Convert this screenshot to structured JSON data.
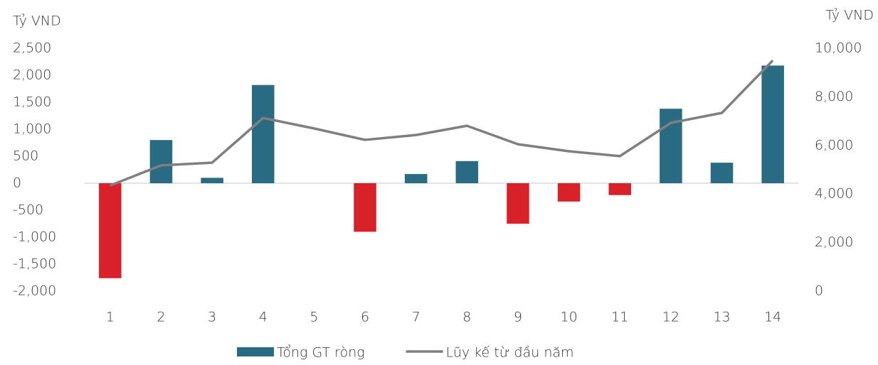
{
  "chart_data": {
    "type": "bar",
    "y_label": "Tỷ VND",
    "y2_label": "Tỷ VND",
    "categories": [
      "1",
      "2",
      "3",
      "4",
      "5",
      "6",
      "7",
      "8",
      "9",
      "10",
      "11",
      "12",
      "13",
      "14"
    ],
    "series": [
      {
        "name": "Tổng GT ròng",
        "type": "bar",
        "color": "#296b82",
        "negative_color": "#d92129",
        "values": [
          -1760,
          800,
          100,
          1820,
          0,
          -900,
          170,
          410,
          -750,
          -340,
          -220,
          1380,
          380,
          2180
        ]
      },
      {
        "name": "Lũy kế từ đầu năm",
        "type": "line",
        "axis": "y2",
        "color": "#7f7f7f",
        "values": [
          4350,
          5180,
          5290,
          7130,
          6700,
          6230,
          6430,
          6810,
          6050,
          5760,
          5560,
          6930,
          7340,
          9500
        ]
      }
    ],
    "ylim": [
      -2000,
      2500
    ],
    "yticks": [
      {
        "value": -2000,
        "label": "-2,000"
      },
      {
        "value": -1500,
        "label": "-1,500"
      },
      {
        "value": -1000,
        "label": "-1,000"
      },
      -500,
      0,
      500,
      {
        "value": 1000,
        "label": "1,000"
      },
      {
        "value": 1500,
        "label": "1,500"
      },
      {
        "value": 2000,
        "label": "2,000"
      },
      {
        "value": 2500,
        "label": "2,500"
      }
    ],
    "y2lim": [
      0,
      10000
    ],
    "y2ticks": [
      0,
      {
        "value": 2000,
        "label": "2,000"
      },
      {
        "value": 4000,
        "label": "4,000"
      },
      {
        "value": 6000,
        "label": "6,000"
      },
      {
        "value": 8000,
        "label": "8,000"
      },
      {
        "value": 10000,
        "label": "10,000"
      }
    ],
    "legend": "bottom"
  }
}
